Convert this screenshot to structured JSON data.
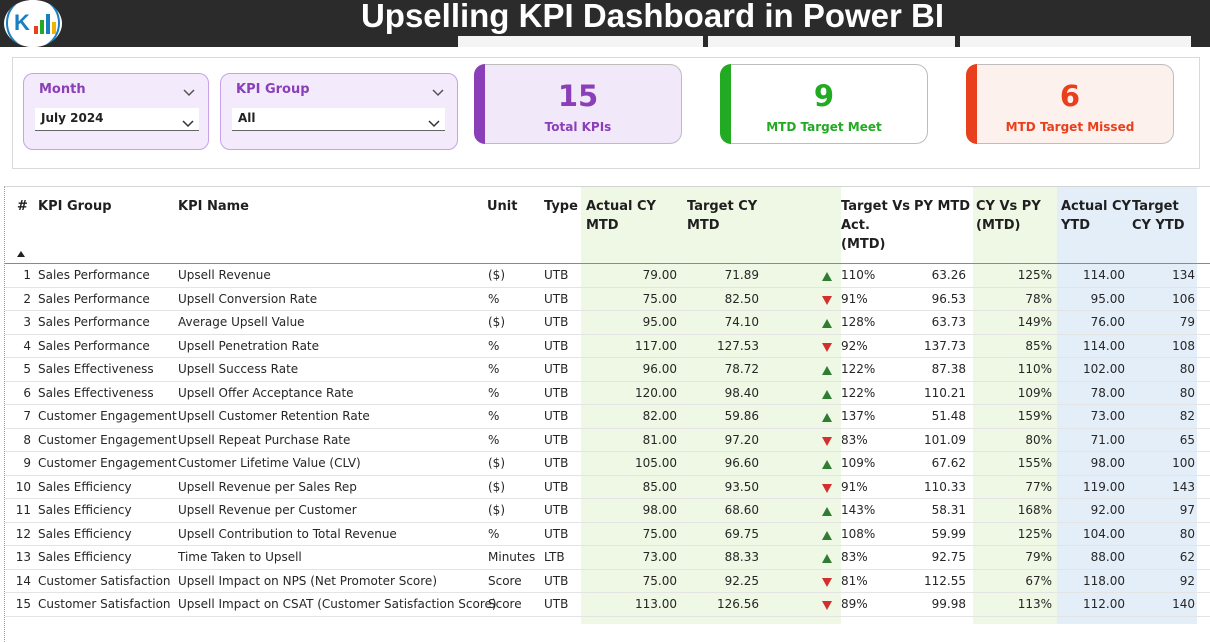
{
  "header": {
    "title": "Upselling KPI Dashboard in Power BI",
    "logo_icon": "dashboard-logo-icon"
  },
  "colors": {
    "header_bg": "#2b2b2b",
    "slicer_bg": "#f3eafb",
    "slicer_accent": "#8a3fb8",
    "card_total": "#8a3fb8",
    "card_met": "#22aa22",
    "card_missed": "#e8401c",
    "mtd_column_bg": "#eef8e4",
    "ytd_column_bg": "#e4eef8",
    "arrow_up": "#2e7d32",
    "arrow_down": "#d32f2f"
  },
  "filters": {
    "month": {
      "label": "Month",
      "value": "July 2024",
      "icon": "chevron-down-icon"
    },
    "kpi_group": {
      "label": "KPI Group",
      "value": "All",
      "icon": "chevron-down-icon"
    }
  },
  "cards": {
    "total": {
      "value": "15",
      "label": "Total KPIs"
    },
    "met": {
      "value": "9",
      "label": "MTD Target Meet"
    },
    "missed": {
      "value": "6",
      "label": "MTD Target Missed"
    }
  },
  "table": {
    "columns": [
      "#",
      "KPI Group",
      "KPI Name",
      "Unit",
      "Type",
      "Actual CY MTD",
      "Target CY MTD",
      "Target Vs Act. (MTD)",
      "PY MTD",
      "CY Vs PY (MTD)",
      "Actual CY YTD",
      "Target CY YTD"
    ],
    "rows": [
      {
        "n": "1",
        "group": "Sales Performance",
        "name": "Upsell Revenue",
        "unit": "($)",
        "type": "UTB",
        "act": "79.00",
        "tgt": "71.89",
        "dir": "up",
        "pct": "110%",
        "py": "63.26",
        "cyvpy": "125%",
        "aytd": "114.00",
        "tytd": "134"
      },
      {
        "n": "2",
        "group": "Sales Performance",
        "name": "Upsell Conversion Rate",
        "unit": "%",
        "type": "UTB",
        "act": "75.00",
        "tgt": "82.50",
        "dir": "down",
        "pct": "91%",
        "py": "96.53",
        "cyvpy": "78%",
        "aytd": "95.00",
        "tytd": "106"
      },
      {
        "n": "3",
        "group": "Sales Performance",
        "name": "Average Upsell Value",
        "unit": "($)",
        "type": "UTB",
        "act": "95.00",
        "tgt": "74.10",
        "dir": "up",
        "pct": "128%",
        "py": "63.73",
        "cyvpy": "149%",
        "aytd": "76.00",
        "tytd": "79"
      },
      {
        "n": "4",
        "group": "Sales Performance",
        "name": "Upsell Penetration Rate",
        "unit": "%",
        "type": "UTB",
        "act": "117.00",
        "tgt": "127.53",
        "dir": "down",
        "pct": "92%",
        "py": "137.73",
        "cyvpy": "85%",
        "aytd": "114.00",
        "tytd": "108"
      },
      {
        "n": "5",
        "group": "Sales Effectiveness",
        "name": "Upsell Success Rate",
        "unit": "%",
        "type": "UTB",
        "act": "96.00",
        "tgt": "78.72",
        "dir": "up",
        "pct": "122%",
        "py": "87.38",
        "cyvpy": "110%",
        "aytd": "102.00",
        "tytd": "80"
      },
      {
        "n": "6",
        "group": "Sales Effectiveness",
        "name": "Upsell Offer Acceptance Rate",
        "unit": "%",
        "type": "UTB",
        "act": "120.00",
        "tgt": "98.40",
        "dir": "up",
        "pct": "122%",
        "py": "110.21",
        "cyvpy": "109%",
        "aytd": "78.00",
        "tytd": "80"
      },
      {
        "n": "7",
        "group": "Customer Engagement",
        "name": "Upsell Customer Retention Rate",
        "unit": "%",
        "type": "UTB",
        "act": "82.00",
        "tgt": "59.86",
        "dir": "up",
        "pct": "137%",
        "py": "51.48",
        "cyvpy": "159%",
        "aytd": "73.00",
        "tytd": "82"
      },
      {
        "n": "8",
        "group": "Customer Engagement",
        "name": "Upsell Repeat Purchase Rate",
        "unit": "%",
        "type": "UTB",
        "act": "81.00",
        "tgt": "97.20",
        "dir": "down",
        "pct": "83%",
        "py": "101.09",
        "cyvpy": "80%",
        "aytd": "71.00",
        "tytd": "65"
      },
      {
        "n": "9",
        "group": "Customer Engagement",
        "name": "Customer Lifetime Value (CLV)",
        "unit": "($)",
        "type": "UTB",
        "act": "105.00",
        "tgt": "96.60",
        "dir": "up",
        "pct": "109%",
        "py": "67.62",
        "cyvpy": "155%",
        "aytd": "98.00",
        "tytd": "100"
      },
      {
        "n": "10",
        "group": "Sales Efficiency",
        "name": "Upsell Revenue per Sales Rep",
        "unit": "($)",
        "type": "UTB",
        "act": "85.00",
        "tgt": "93.50",
        "dir": "down",
        "pct": "91%",
        "py": "110.33",
        "cyvpy": "77%",
        "aytd": "119.00",
        "tytd": "143"
      },
      {
        "n": "11",
        "group": "Sales Efficiency",
        "name": "Upsell Revenue per Customer",
        "unit": "($)",
        "type": "UTB",
        "act": "98.00",
        "tgt": "68.60",
        "dir": "up",
        "pct": "143%",
        "py": "58.31",
        "cyvpy": "168%",
        "aytd": "92.00",
        "tytd": "97"
      },
      {
        "n": "12",
        "group": "Sales Efficiency",
        "name": "Upsell Contribution to Total Revenue",
        "unit": "%",
        "type": "UTB",
        "act": "75.00",
        "tgt": "69.75",
        "dir": "up",
        "pct": "108%",
        "py": "59.99",
        "cyvpy": "125%",
        "aytd": "104.00",
        "tytd": "80"
      },
      {
        "n": "13",
        "group": "Sales Efficiency",
        "name": "Time Taken to Upsell",
        "unit": "Minutes",
        "type": "LTB",
        "act": "73.00",
        "tgt": "88.33",
        "dir": "up",
        "pct": "83%",
        "py": "92.75",
        "cyvpy": "79%",
        "aytd": "88.00",
        "tytd": "62"
      },
      {
        "n": "14",
        "group": "Customer Satisfaction",
        "name": "Upsell Impact on NPS (Net Promoter Score)",
        "unit": "Score",
        "type": "UTB",
        "act": "75.00",
        "tgt": "92.25",
        "dir": "down",
        "pct": "81%",
        "py": "112.55",
        "cyvpy": "67%",
        "aytd": "118.00",
        "tytd": "92"
      },
      {
        "n": "15",
        "group": "Customer Satisfaction",
        "name": "Upsell Impact on CSAT (Customer Satisfaction Score)",
        "unit": "Score",
        "type": "UTB",
        "act": "113.00",
        "tgt": "126.56",
        "dir": "down",
        "pct": "89%",
        "py": "99.98",
        "cyvpy": "113%",
        "aytd": "112.00",
        "tytd": "140"
      }
    ]
  }
}
